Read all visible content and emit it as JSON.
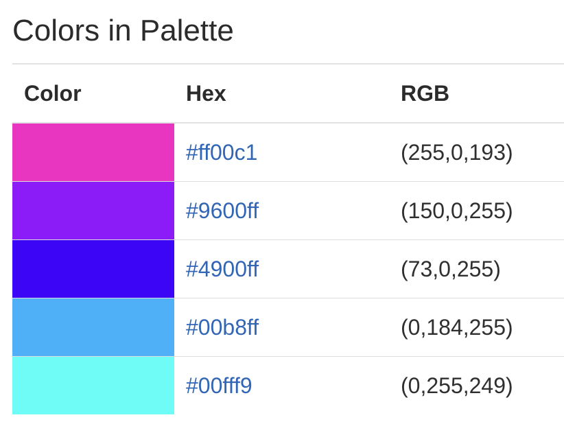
{
  "title": "Colors in Palette",
  "columns": {
    "color": "Color",
    "hex": "Hex",
    "rgb": "RGB"
  },
  "rows": [
    {
      "swatch": "#e936c0",
      "hex": "#ff00c1",
      "rgb": "(255,0,193)"
    },
    {
      "swatch": "#8b1cf7",
      "hex": "#9600ff",
      "rgb": "(150,0,255)"
    },
    {
      "swatch": "#3d05f5",
      "hex": "#4900ff",
      "rgb": "(73,0,255)"
    },
    {
      "swatch": "#4fb0f8",
      "hex": "#00b8ff",
      "rgb": "(0,184,255)"
    },
    {
      "swatch": "#70fcf6",
      "hex": "#00fff9",
      "rgb": "(0,255,249)"
    }
  ]
}
